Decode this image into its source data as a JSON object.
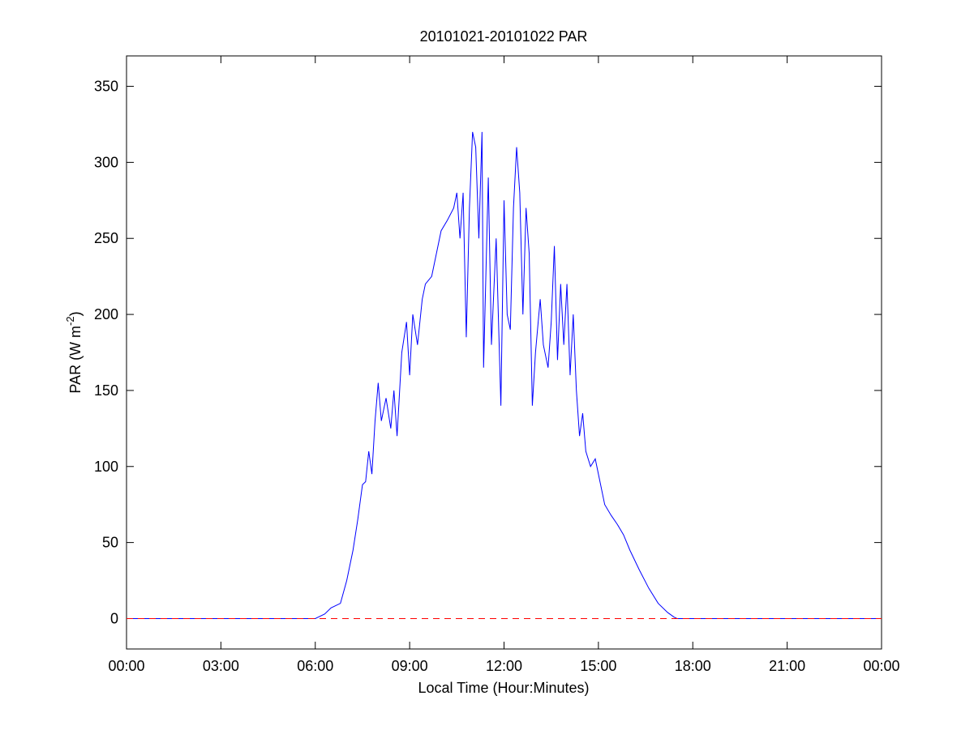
{
  "chart_data": {
    "type": "line",
    "title": "20101021-20101022 PAR",
    "x_label": "Local Time (Hour:Minutes)",
    "y_label": {
      "text": "PAR (W m",
      "superscript": "-2",
      "suffix": ")"
    },
    "x": [
      0,
      6.0,
      6.3,
      6.5,
      6.8,
      7.0,
      7.2,
      7.35,
      7.5,
      7.6,
      7.7,
      7.8,
      7.9,
      8.0,
      8.1,
      8.25,
      8.4,
      8.5,
      8.6,
      8.75,
      8.9,
      9.0,
      9.1,
      9.25,
      9.4,
      9.5,
      9.7,
      9.85,
      10.0,
      10.2,
      10.4,
      10.5,
      10.6,
      10.7,
      10.8,
      10.9,
      11.0,
      11.1,
      11.2,
      11.3,
      11.35,
      11.5,
      11.6,
      11.75,
      11.9,
      12.0,
      12.1,
      12.2,
      12.3,
      12.4,
      12.5,
      12.6,
      12.7,
      12.8,
      12.9,
      13.0,
      13.15,
      13.25,
      13.4,
      13.5,
      13.6,
      13.7,
      13.8,
      13.9,
      14.0,
      14.1,
      14.2,
      14.3,
      14.4,
      14.5,
      14.6,
      14.75,
      14.9,
      15.0,
      15.2,
      15.4,
      15.6,
      15.8,
      16.0,
      16.3,
      16.6,
      16.9,
      17.2,
      17.4,
      17.5,
      24
    ],
    "series": [
      {
        "name": "PAR",
        "color": "#0000ff",
        "values": [
          0,
          0,
          3,
          7,
          10,
          25,
          45,
          65,
          88,
          90,
          110,
          95,
          130,
          155,
          130,
          145,
          125,
          150,
          120,
          175,
          195,
          160,
          200,
          180,
          210,
          220,
          225,
          240,
          255,
          262,
          270,
          280,
          250,
          280,
          185,
          270,
          320,
          310,
          250,
          320,
          165,
          290,
          180,
          250,
          140,
          275,
          200,
          190,
          270,
          310,
          280,
          200,
          270,
          240,
          140,
          175,
          210,
          180,
          165,
          195,
          245,
          170,
          220,
          180,
          220,
          160,
          200,
          150,
          120,
          135,
          110,
          100,
          105,
          95,
          75,
          68,
          62,
          55,
          45,
          32,
          20,
          10,
          4,
          1,
          0,
          0
        ]
      }
    ],
    "reference_line": {
      "value": 0,
      "color": "#ff0000",
      "style": "dashed"
    },
    "xlim": [
      0,
      24
    ],
    "xticks": [
      {
        "value": 0,
        "label": "00:00"
      },
      {
        "value": 3,
        "label": "03:00"
      },
      {
        "value": 6,
        "label": "06:00"
      },
      {
        "value": 9,
        "label": "09:00"
      },
      {
        "value": 12,
        "label": "12:00"
      },
      {
        "value": 15,
        "label": "15:00"
      },
      {
        "value": 18,
        "label": "18:00"
      },
      {
        "value": 21,
        "label": "21:00"
      },
      {
        "value": 24,
        "label": "00:00"
      }
    ],
    "ylim": [
      -20,
      370
    ],
    "yticks": [
      0,
      50,
      100,
      150,
      200,
      250,
      300,
      350
    ],
    "grid": false
  }
}
